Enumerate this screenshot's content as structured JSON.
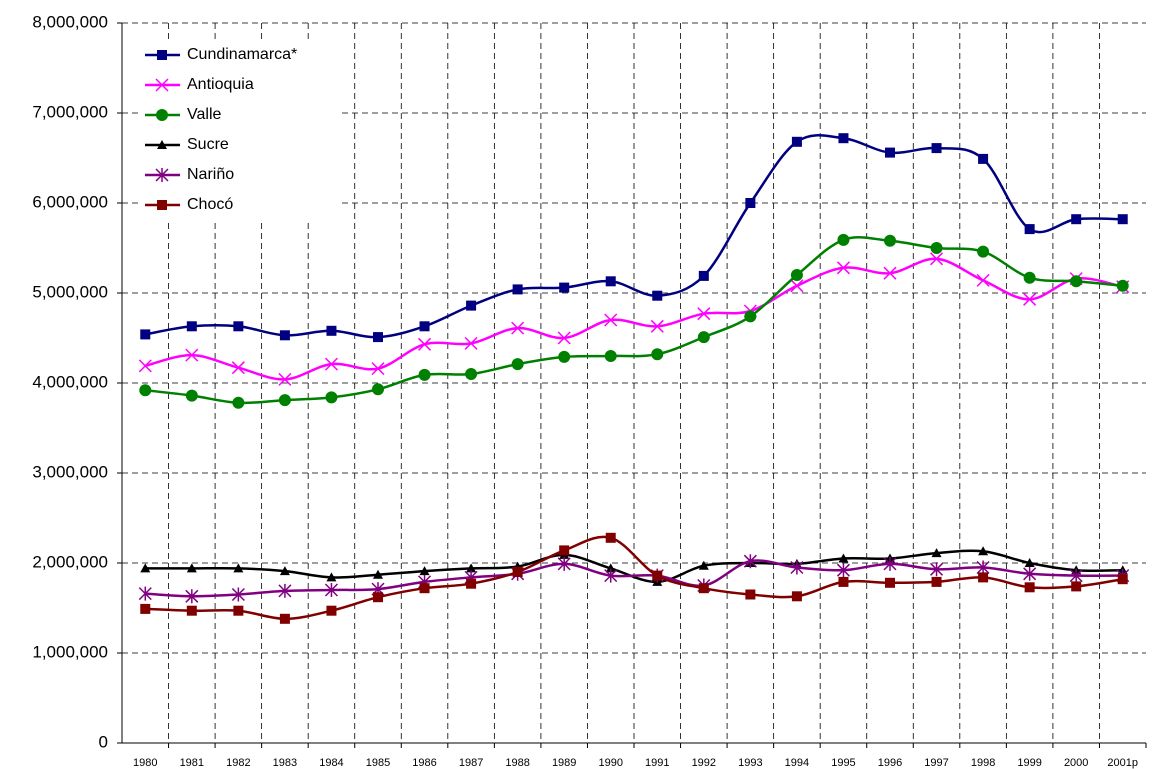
{
  "chart_data": {
    "type": "line",
    "smooth": true,
    "grid": true,
    "legend": "upper-left",
    "categories": [
      "1980",
      "1981",
      "1982",
      "1983",
      "1984",
      "1985",
      "1986",
      "1987",
      "1988",
      "1989",
      "1990",
      "1991",
      "1992",
      "1993",
      "1994",
      "1995",
      "1996",
      "1997",
      "1998",
      "1999",
      "2000",
      "2001p"
    ],
    "ylim": [
      0,
      8000000
    ],
    "yticks": [
      0,
      {
        "value": 1000000,
        "label": "1,000,000"
      },
      {
        "value": 2000000,
        "label": "2,000,000"
      },
      {
        "value": 3000000,
        "label": "3,000,000"
      },
      {
        "value": 4000000,
        "label": "4,000,000"
      },
      {
        "value": 5000000,
        "label": "5,000,000"
      },
      {
        "value": 6000000,
        "label": "6,000,000"
      },
      {
        "value": 7000000,
        "label": "7,000,000"
      },
      {
        "value": 8000000,
        "label": "8,000,000"
      }
    ],
    "series": [
      {
        "name": "Cundinamarca*",
        "color": "#000080",
        "marker": "square",
        "values": [
          4540000,
          4630000,
          4630000,
          4530000,
          4580000,
          4510000,
          4630000,
          4860000,
          5040000,
          5060000,
          5130000,
          4970000,
          5190000,
          6000000,
          6680000,
          6720000,
          6560000,
          6610000,
          6490000,
          5710000,
          5820000,
          5820000
        ]
      },
      {
        "name": "Antioquia",
        "color": "#ff00ff",
        "marker": "x",
        "values": [
          4190000,
          4310000,
          4170000,
          4040000,
          4210000,
          4160000,
          4430000,
          4440000,
          4610000,
          4500000,
          4700000,
          4630000,
          4770000,
          4800000,
          5080000,
          5280000,
          5220000,
          5380000,
          5140000,
          4930000,
          5160000,
          5070000
        ]
      },
      {
        "name": "Valle",
        "color": "#008000",
        "marker": "circle",
        "values": [
          3920000,
          3860000,
          3780000,
          3810000,
          3840000,
          3930000,
          4090000,
          4100000,
          4210000,
          4290000,
          4300000,
          4320000,
          4510000,
          4740000,
          5200000,
          5590000,
          5580000,
          5500000,
          5460000,
          5170000,
          5130000,
          5080000
        ]
      },
      {
        "name": "Sucre",
        "color": "#000000",
        "marker": "triangle",
        "values": [
          1940000,
          1940000,
          1940000,
          1910000,
          1840000,
          1870000,
          1910000,
          1940000,
          1960000,
          2090000,
          1940000,
          1790000,
          1970000,
          2000000,
          1990000,
          2050000,
          2050000,
          2110000,
          2130000,
          2000000,
          1920000,
          1920000
        ]
      },
      {
        "name": "Nariño",
        "color": "#800080",
        "marker": "star",
        "values": [
          1660000,
          1630000,
          1650000,
          1690000,
          1700000,
          1710000,
          1790000,
          1840000,
          1880000,
          1990000,
          1860000,
          1860000,
          1750000,
          2020000,
          1950000,
          1920000,
          1990000,
          1930000,
          1950000,
          1880000,
          1860000,
          1860000
        ]
      },
      {
        "name": "Chocó",
        "color": "#800000",
        "marker": "square",
        "values": [
          1490000,
          1470000,
          1470000,
          1380000,
          1470000,
          1620000,
          1720000,
          1770000,
          1900000,
          2140000,
          2280000,
          1860000,
          1720000,
          1650000,
          1630000,
          1790000,
          1780000,
          1790000,
          1840000,
          1730000,
          1740000,
          1820000
        ]
      }
    ]
  }
}
